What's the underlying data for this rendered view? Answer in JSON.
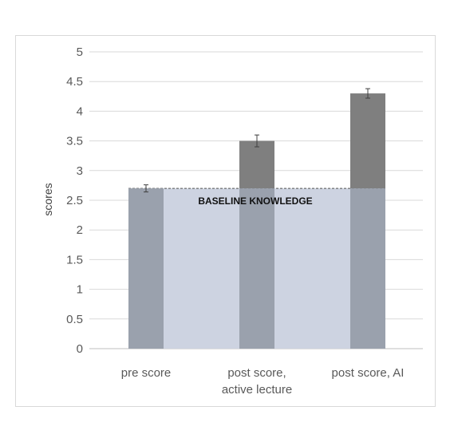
{
  "chart_data": {
    "type": "bar",
    "title": "",
    "xlabel": "",
    "ylabel": "scores",
    "ylim": [
      0,
      5
    ],
    "yticks": [
      "0",
      "0.5",
      "1",
      "1.5",
      "2",
      "2.5",
      "3",
      "3.5",
      "4",
      "4.5",
      "5"
    ],
    "grid": true,
    "categories": [
      [
        "pre score"
      ],
      [
        "post score,",
        "active lecture"
      ],
      [
        "post score, AI"
      ]
    ],
    "values": [
      2.7,
      3.5,
      4.3
    ],
    "error": [
      0.06,
      0.1,
      0.08
    ],
    "baseline": {
      "value": 2.7,
      "label": "BASELINE KNOWLEDGE"
    },
    "colors": {
      "bar": "#7f7f7f",
      "bar_below_baseline": "#9aa1ad",
      "baseline_band": "#cdd3e1",
      "grid": "#d9d9d9",
      "error": "#404040"
    }
  }
}
